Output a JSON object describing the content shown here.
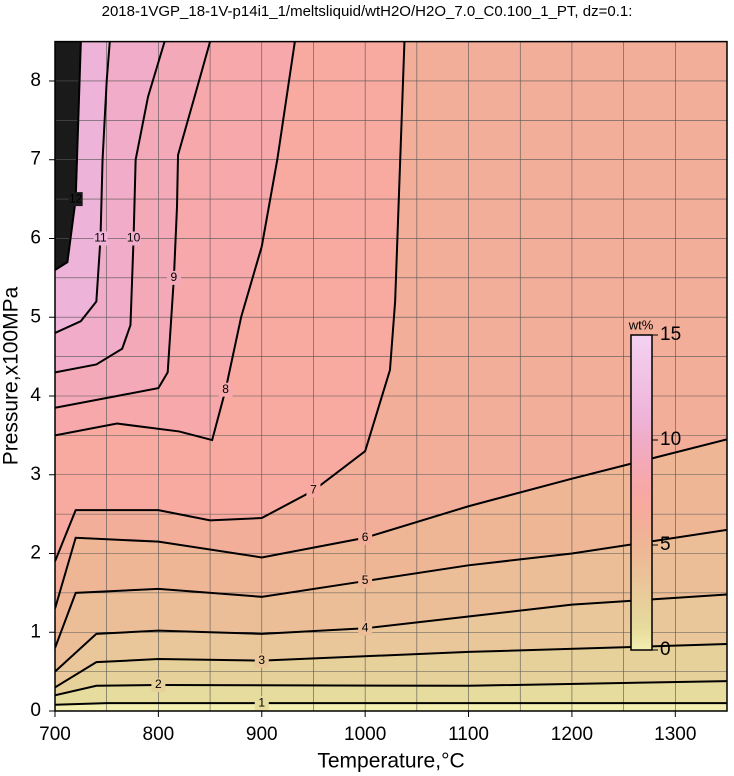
{
  "chart_data": {
    "type": "contour",
    "title": "2018-1VGP_18-1V-p14i1_1/meltsliquid/wtH2O/H2O_7.0_C0.100_1_PT, dz=0.1:",
    "x_label": "Temperature,°C",
    "y_label": "Pressure,x100MPa",
    "xlim": [
      700,
      1350
    ],
    "ylim": [
      0,
      8.5
    ],
    "xticks": [
      700,
      800,
      900,
      1000,
      1100,
      1200,
      1300
    ],
    "yticks": [
      0,
      1,
      2,
      3,
      4,
      5,
      6,
      7,
      8
    ],
    "xgrid": [
      750,
      800,
      850,
      900,
      950,
      1000,
      1050,
      1100,
      1150,
      1200,
      1250,
      1300
    ],
    "ygrid": [
      0.5,
      1,
      1.5,
      2,
      2.5,
      3,
      3.5,
      4,
      4.5,
      5,
      5.5,
      6,
      6.5,
      7,
      7.5,
      8
    ],
    "base_color": "#f3efb0",
    "series": [
      {
        "level": 1,
        "color": "#e6dc9e",
        "x": [
          700,
          750,
          900,
          1350
        ],
        "y": [
          0.08,
          0.1,
          0.1,
          0.1
        ]
      },
      {
        "level": 2,
        "color": "#e7d19a",
        "x": [
          700,
          740,
          800,
          1100,
          1350
        ],
        "y": [
          0.2,
          0.32,
          0.33,
          0.32,
          0.38
        ]
      },
      {
        "level": 3,
        "color": "#eac79a",
        "x": [
          700,
          740,
          800,
          900,
          1100,
          1350
        ],
        "y": [
          0.3,
          0.62,
          0.66,
          0.64,
          0.75,
          0.85
        ]
      },
      {
        "level": 4,
        "color": "#ecbe97",
        "x": [
          700,
          740,
          800,
          900,
          1000,
          1100,
          1200,
          1350
        ],
        "y": [
          0.5,
          0.98,
          1.02,
          0.98,
          1.05,
          1.2,
          1.35,
          1.48
        ]
      },
      {
        "level": 5,
        "color": "#efb696",
        "x": [
          700,
          720,
          800,
          900,
          1000,
          1100,
          1200,
          1350
        ],
        "y": [
          0.8,
          1.5,
          1.55,
          1.45,
          1.65,
          1.85,
          2.0,
          2.3
        ]
      },
      {
        "level": 6,
        "color": "#f3ae9a",
        "x": [
          700,
          720,
          800,
          900,
          1000,
          1100,
          1200,
          1350
        ],
        "y": [
          1.3,
          2.2,
          2.15,
          1.95,
          2.2,
          2.6,
          2.95,
          3.45
        ]
      },
      {
        "level": 7,
        "color": "#f8a9a0",
        "x": [
          700,
          720,
          800,
          850,
          900,
          950,
          1000,
          1024,
          1029,
          1038
        ],
        "y": [
          1.9,
          2.55,
          2.55,
          2.42,
          2.45,
          2.8,
          3.3,
          4.33,
          5.2,
          8.5
        ]
      },
      {
        "level": 8,
        "color": "#f6a8aa",
        "x": [
          700,
          760,
          820,
          852,
          865,
          880,
          900,
          915,
          932
        ],
        "y": [
          3.5,
          3.65,
          3.55,
          3.44,
          4.08,
          5.0,
          5.9,
          7.0,
          8.5
        ]
      },
      {
        "level": 9,
        "color": "#f3a9b8",
        "x": [
          700,
          760,
          800,
          809,
          815,
          818,
          819,
          835,
          850
        ],
        "y": [
          3.85,
          4.0,
          4.1,
          4.3,
          5.5,
          6.4,
          7.06,
          7.8,
          8.5
        ]
      },
      {
        "level": 10,
        "color": "#f0acc8",
        "x": [
          700,
          740,
          765,
          773,
          776,
          778,
          790,
          806
        ],
        "y": [
          4.3,
          4.4,
          4.6,
          4.9,
          6.0,
          7.0,
          7.8,
          8.5
        ]
      },
      {
        "level": 11,
        "color": "#eeb3d8",
        "x": [
          700,
          725,
          740,
          744,
          746,
          750,
          753
        ],
        "y": [
          4.8,
          4.95,
          5.2,
          6.0,
          7.0,
          8.0,
          8.5
        ]
      },
      {
        "level": 12,
        "color": "#1a1a1a",
        "x": [
          700,
          712,
          720,
          725
        ],
        "y": [
          5.6,
          5.7,
          6.5,
          8.5
        ]
      }
    ],
    "colorbar": {
      "label": "wt%",
      "lim": [
        0,
        15
      ],
      "ticks": [
        0,
        5,
        10,
        15
      ],
      "top_color": "#f4d2f2"
    }
  }
}
